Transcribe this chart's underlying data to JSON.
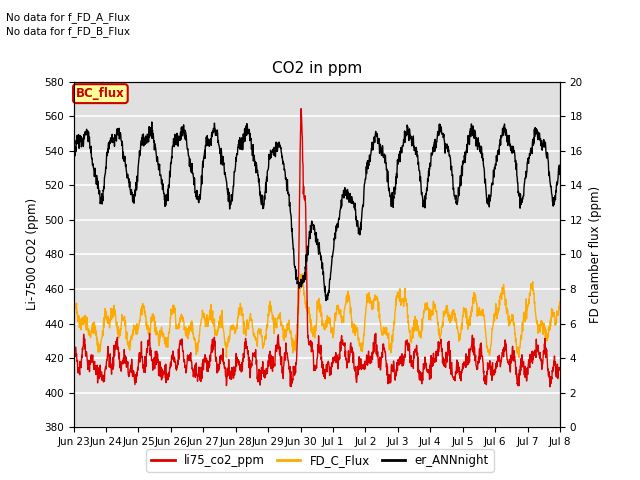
{
  "title": "CO2 in ppm",
  "ylabel_left": "Li-7500 CO2 (ppm)",
  "ylabel_right": "FD chamber flux (ppm)",
  "annotation1": "No data for f_FD_A_Flux",
  "annotation2": "No data for f_FD_B_Flux",
  "annotation3": "BC_flux",
  "xlim_start": 0,
  "xlim_end": 15,
  "ylim_left": [
    380,
    580
  ],
  "ylim_right": [
    0,
    20
  ],
  "yticks_left": [
    380,
    400,
    420,
    440,
    460,
    480,
    500,
    520,
    540,
    560,
    580
  ],
  "yticks_right": [
    0,
    2,
    4,
    6,
    8,
    10,
    12,
    14,
    16,
    18,
    20
  ],
  "xtick_labels": [
    "Jun 23",
    "Jun 24",
    "Jun 25",
    "Jun 26",
    "Jun 27",
    "Jun 28",
    "Jun 29",
    "Jun 30",
    "Jul 1",
    "Jul 2",
    "Jul 3",
    "Jul 4",
    "Jul 5",
    "Jul 6",
    "Jul 7",
    "Jul 8"
  ],
  "xtick_positions": [
    0,
    1,
    2,
    3,
    4,
    5,
    6,
    7,
    8,
    9,
    10,
    11,
    12,
    13,
    14,
    15
  ],
  "color_red": "#dd0000",
  "color_orange": "#ffaa00",
  "color_black": "#000000",
  "color_bg": "#e0e0e0",
  "color_bc_flux_bg": "#ffff99",
  "color_bc_flux_border": "#cc0000",
  "color_bc_flux_text": "#cc0000",
  "legend_labels": [
    "li75_co2_ppm",
    "FD_C_Flux",
    "er_ANNnight"
  ],
  "linewidth": 1.0,
  "grid_color": "#ffffff",
  "fig_bg": "#ffffff"
}
